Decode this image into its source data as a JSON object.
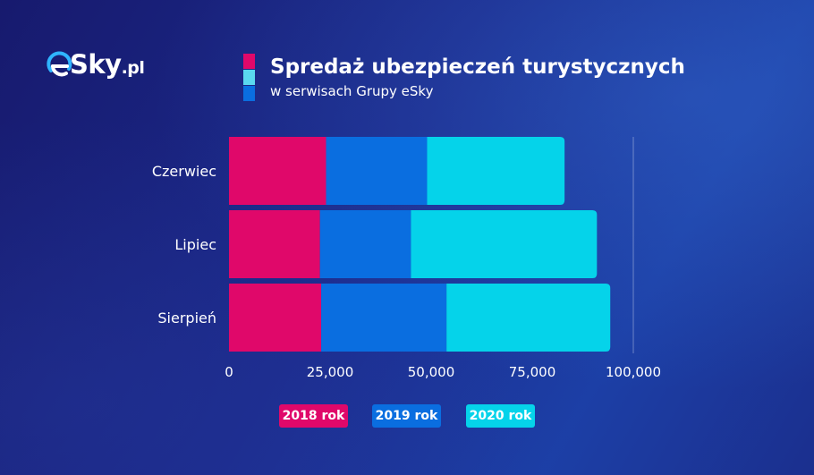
{
  "brand": {
    "logo_text_e": "e",
    "logo_text_sky": "Sky",
    "logo_text_tld": ".pl"
  },
  "header": {
    "title": "Spredaż ubezpieczeń turystycznych",
    "subtitle": "w serwisach Grupy eSky"
  },
  "colors": {
    "series_2018": "#e0086a",
    "series_2019": "#0a6ee0",
    "series_2020": "#05d3ea",
    "title_bar_light": "#5ad8ef"
  },
  "chart_data": {
    "type": "bar",
    "orientation": "horizontal",
    "stacked": true,
    "categories": [
      "Czerwiec",
      "Lipiec",
      "Sierpień"
    ],
    "series": [
      {
        "name": "2018 rok",
        "values": [
          24000,
          22500,
          22800
        ]
      },
      {
        "name": "2019 rok",
        "values": [
          25000,
          22500,
          31000
        ]
      },
      {
        "name": "2020 rok",
        "values": [
          34000,
          46000,
          40500
        ]
      }
    ],
    "xticks": [
      "0",
      "25,000",
      "50,000",
      "75,000",
      "100,000"
    ],
    "xlim": [
      0,
      100000
    ],
    "legend_position": "bottom",
    "grid": false
  }
}
